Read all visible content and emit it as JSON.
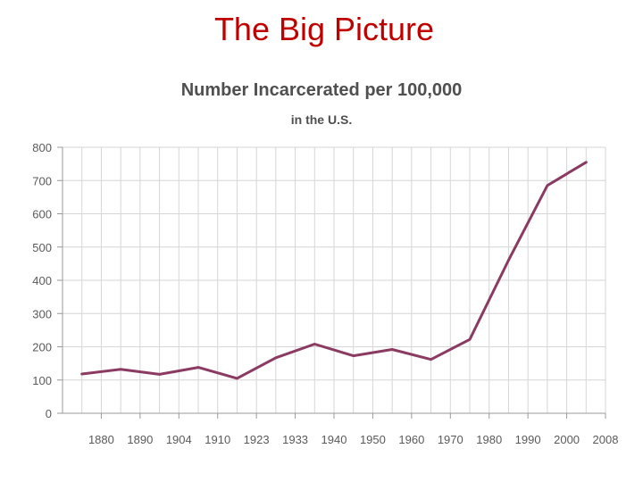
{
  "slide": {
    "title": "The Big Picture"
  },
  "chart_data": {
    "type": "line",
    "title": "Number Incarcerated per 100,000",
    "subtitle": "in the U.S.",
    "xlabel": "",
    "ylabel": "",
    "categories": [
      "1880",
      "1890",
      "1904",
      "1910",
      "1923",
      "1933",
      "1940",
      "1950",
      "1960",
      "1970",
      "1980",
      "1990",
      "2000",
      "2008"
    ],
    "series": [
      {
        "color": "#8b3a62",
        "x": [
          1875,
          1885,
          1895,
          1905,
          1915,
          1925,
          1935,
          1945,
          1955,
          1965,
          1975,
          1985,
          1995,
          2005
        ],
        "values": [
          118,
          132,
          117,
          138,
          105,
          167,
          208,
          173,
          192,
          162,
          222,
          460,
          685,
          755
        ]
      }
    ],
    "x_ticks": [
      1880,
      1890,
      1900,
      1910,
      1920,
      1930,
      1940,
      1950,
      1960,
      1970,
      1980,
      1990,
      2000,
      2010
    ],
    "yticks": [
      0,
      100,
      200,
      300,
      400,
      500,
      600,
      700,
      800
    ],
    "ylim": [
      0,
      800
    ],
    "xlim": [
      1870,
      2010
    ],
    "grid": true,
    "legend": "none"
  }
}
